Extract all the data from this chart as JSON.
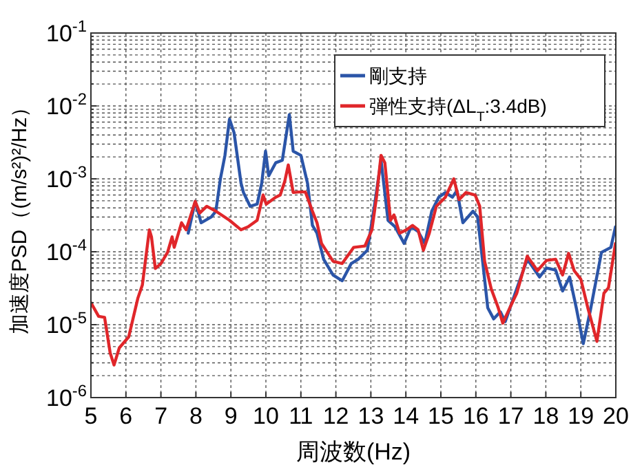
{
  "chart_data": {
    "type": "line",
    "xlabel": "周波数(Hz)",
    "ylabel": "加速度PSD（(m/s²)²/Hz）",
    "log": "y",
    "grid": true,
    "legend": "top right",
    "line_style": "solid",
    "xlim": [
      5,
      20
    ],
    "xticks": [
      5,
      6,
      7,
      8,
      9,
      10,
      11,
      12,
      13,
      14,
      15,
      16,
      17,
      18,
      19,
      20
    ],
    "ylim": [
      1e-06,
      0.1
    ],
    "yticks": [
      {
        "value": 1e-06,
        "label": "10$^{-6}$"
      },
      {
        "value": 2e-06,
        "label": null
      },
      {
        "value": 3e-06,
        "label": null
      },
      {
        "value": 4e-06,
        "label": null
      },
      {
        "value": 5e-06,
        "label": null
      },
      {
        "value": 6e-06,
        "label": null
      },
      {
        "value": 7e-06,
        "label": null
      },
      {
        "value": 8e-06,
        "label": null
      },
      {
        "value": 9e-06,
        "label": null
      },
      {
        "value": 1e-05,
        "label": "10$^{-5}$"
      },
      {
        "value": 2e-05,
        "label": null
      },
      {
        "value": 3e-05,
        "label": null
      },
      {
        "value": 4e-05,
        "label": null
      },
      {
        "value": 5e-05,
        "label": null
      },
      {
        "value": 6e-05,
        "label": null
      },
      {
        "value": 7e-05,
        "label": null
      },
      {
        "value": 8e-05,
        "label": null
      },
      {
        "value": 9e-05,
        "label": null
      },
      {
        "value": 0.0001,
        "label": "10$^{-4}$"
      },
      {
        "value": 0.0002,
        "label": null
      },
      {
        "value": 0.0003,
        "label": null
      },
      {
        "value": 0.0004,
        "label": null
      },
      {
        "value": 0.0005,
        "label": null
      },
      {
        "value": 0.0006,
        "label": null
      },
      {
        "value": 0.0007,
        "label": null
      },
      {
        "value": 0.0008,
        "label": null
      },
      {
        "value": 0.0009,
        "label": null
      },
      {
        "value": 0.001,
        "label": "10$^{-3}$"
      },
      {
        "value": 0.002,
        "label": null
      },
      {
        "value": 0.003,
        "label": null
      },
      {
        "value": 0.004,
        "label": null
      },
      {
        "value": 0.005,
        "label": null
      },
      {
        "value": 0.006,
        "label": null
      },
      {
        "value": 0.007,
        "label": null
      },
      {
        "value": 0.008,
        "label": null
      },
      {
        "value": 0.009,
        "label": null
      },
      {
        "value": 0.01,
        "label": "10$^{-2}$"
      },
      {
        "value": 0.02,
        "label": null
      },
      {
        "value": 0.03,
        "label": null
      },
      {
        "value": 0.04,
        "label": null
      },
      {
        "value": 0.05,
        "label": null
      },
      {
        "value": 0.06,
        "label": null
      },
      {
        "value": 0.07,
        "label": null
      },
      {
        "value": 0.08,
        "label": null
      },
      {
        "value": 0.09,
        "label": null
      },
      {
        "value": 0.1,
        "label": "10$^{-1}$"
      }
    ],
    "series": [
      {
        "name": "剛支持",
        "color": "#2b55a8",
        "x": [
          7.78,
          7.98,
          8.15,
          8.44,
          8.57,
          8.7,
          8.83,
          8.96,
          9.09,
          9.29,
          9.36,
          9.55,
          9.75,
          9.88,
          9.99,
          10.08,
          10.28,
          10.47,
          10.67,
          10.78,
          11.0,
          11.19,
          11.33,
          11.46,
          11.65,
          11.92,
          12.18,
          12.44,
          12.64,
          12.9,
          13.1,
          13.29,
          13.49,
          13.69,
          13.95,
          14.15,
          14.35,
          14.54,
          14.74,
          14.94,
          15.13,
          15.33,
          15.46,
          15.63,
          15.92,
          16.05,
          16.18,
          16.34,
          16.51,
          16.7,
          16.84,
          17.1,
          17.47,
          17.82,
          18.02,
          18.28,
          18.48,
          18.68,
          18.87,
          19.07,
          19.27,
          19.59,
          19.86,
          19.99
        ],
        "values": [
          0.00018,
          0.00049,
          0.00025,
          0.0003,
          0.00036,
          0.001,
          0.0021,
          0.0066,
          0.0043,
          0.00087,
          0.00065,
          0.00042,
          0.00045,
          0.00087,
          0.0024,
          0.0011,
          0.00166,
          0.0018,
          0.0076,
          0.0024,
          0.0021,
          0.00087,
          0.00023,
          0.00018,
          7.9e-05,
          4.8e-05,
          4e-05,
          6.9e-05,
          7.9e-05,
          0.000105,
          0.00042,
          0.0018,
          0.00027,
          0.00022,
          0.00013,
          0.00022,
          0.00019,
          0.00013,
          0.00036,
          0.00056,
          0.00065,
          0.00056,
          0.00069,
          0.00025,
          0.00036,
          0.0003,
          8.5e-05,
          1.7e-05,
          1.2e-05,
          1.5e-05,
          1.1e-05,
          2.5e-05,
          7.9e-05,
          4.5e-05,
          6e-05,
          5.6e-05,
          2.9e-05,
          4.5e-05,
          1.7e-05,
          5.5e-06,
          1.55e-05,
          9.8e-05,
          0.000115,
          0.00022
        ]
      },
      {
        "name": "弾性支持(ΔL$_{T}$:3.4dB)",
        "color": "#e0262a",
        "x": [
          5.0,
          5.22,
          5.39,
          5.55,
          5.66,
          5.81,
          6.08,
          6.34,
          6.47,
          6.67,
          6.73,
          6.84,
          7.0,
          7.19,
          7.32,
          7.38,
          7.59,
          7.72,
          7.98,
          8.11,
          8.31,
          8.57,
          8.96,
          9.29,
          9.49,
          9.75,
          9.92,
          10.01,
          10.28,
          10.41,
          10.54,
          10.64,
          10.78,
          10.93,
          11.13,
          11.33,
          11.46,
          11.59,
          11.92,
          12.18,
          12.51,
          12.83,
          13.03,
          13.16,
          13.29,
          13.4,
          13.56,
          13.66,
          13.82,
          14.02,
          14.19,
          14.35,
          14.5,
          14.67,
          14.87,
          15.13,
          15.37,
          15.52,
          15.72,
          15.98,
          16.11,
          16.25,
          16.44,
          16.64,
          16.77,
          16.97,
          17.17,
          17.47,
          17.76,
          18.02,
          18.28,
          18.48,
          18.65,
          18.81,
          19.0,
          19.2,
          19.46,
          19.66,
          19.79,
          19.99
        ],
        "values": [
          2e-05,
          1.3e-05,
          1.26e-05,
          4.1e-06,
          2.8e-06,
          4.8e-06,
          6.8e-06,
          2.3e-05,
          3.5e-05,
          0.0002,
          0.00016,
          5.9e-05,
          6.9e-05,
          9.8e-05,
          0.00016,
          0.000115,
          0.00025,
          0.0002,
          0.00049,
          0.00034,
          0.00042,
          0.00036,
          0.00027,
          0.0002,
          0.00022,
          0.00027,
          0.0006,
          0.00045,
          0.00056,
          0.0006,
          0.00093,
          0.00155,
          0.00065,
          0.00066,
          0.00066,
          0.00036,
          0.00025,
          0.00013,
          7.4e-05,
          6.9e-05,
          0.000115,
          0.00012,
          0.0002,
          0.00056,
          0.0021,
          0.00166,
          0.00027,
          0.00032,
          0.00018,
          0.0002,
          0.00023,
          0.0002,
          0.000105,
          0.00018,
          0.00042,
          0.00056,
          0.001,
          0.00052,
          0.00065,
          0.0006,
          0.00042,
          7.4e-05,
          3.1e-05,
          1.7e-05,
          1.05e-05,
          1.7e-05,
          2.7e-05,
          8.7e-05,
          5.5e-05,
          7.6e-05,
          7.9e-05,
          4.8e-05,
          9.5e-05,
          5.5e-05,
          4.2e-05,
          1.7e-05,
          5.9e-06,
          2.7e-05,
          3.2e-05,
          0.00013
        ]
      }
    ]
  }
}
